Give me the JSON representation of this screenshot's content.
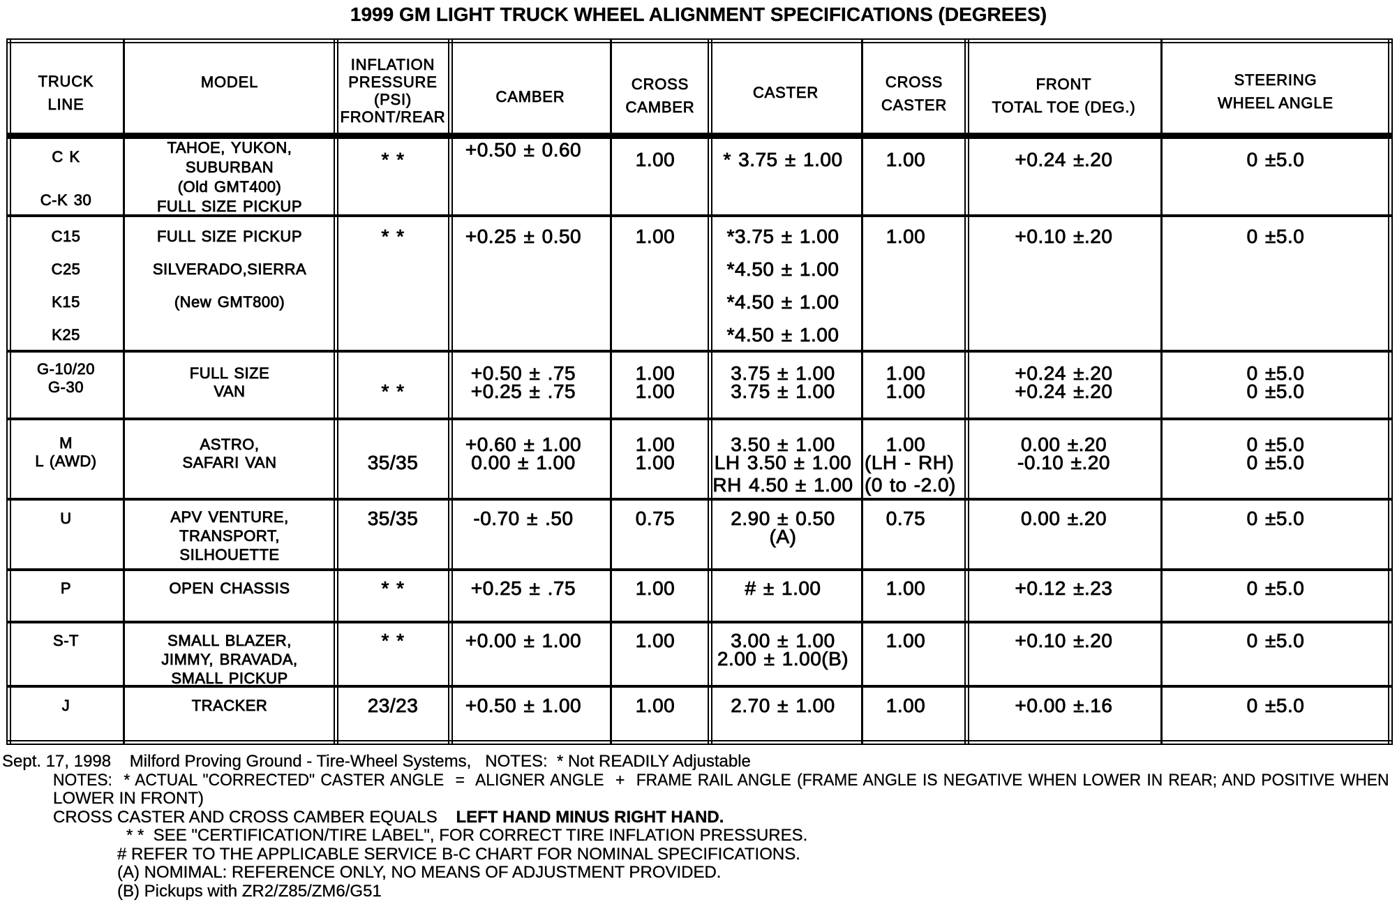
{
  "title": "1999 GM LIGHT TRUCK WHEEL ALIGNMENT SPECIFICATIONS (DEGREES)",
  "table": {
    "headers": [
      {
        "id": "truck-line",
        "lines": [
          "TRUCK",
          "LINE"
        ]
      },
      {
        "id": "model",
        "lines": [
          "MODEL"
        ]
      },
      {
        "id": "inflation-pressure",
        "lines": [
          "INFLATION",
          "PRESSURE",
          "(PSI)",
          "FRONT/REAR"
        ]
      },
      {
        "id": "camber",
        "lines": [
          "CAMBER"
        ]
      },
      {
        "id": "cross-camber",
        "lines": [
          "CROSS",
          "CAMBER"
        ]
      },
      {
        "id": "caster",
        "lines": [
          "CASTER"
        ]
      },
      {
        "id": "cross-caster",
        "lines": [
          "CROSS",
          "CASTER"
        ]
      },
      {
        "id": "front-total-toe",
        "lines": [
          "FRONT",
          "TOTAL TOE (DEG.)"
        ]
      },
      {
        "id": "steering-wheel-angle",
        "lines": [
          "STEERING",
          "WHEEL ANGLE"
        ]
      }
    ],
    "rows": [
      {
        "cells": [
          [
            "C K",
            "",
            "C-K 30"
          ],
          [
            "TAHOE, YUKON,",
            "SUBURBAN",
            "(Old GMT400)",
            "FULL SIZE PICKUP"
          ],
          [
            "* *"
          ],
          [
            "+0.50 ± 0.60"
          ],
          [
            "1.00"
          ],
          [
            "* 3.75 ± 1.00"
          ],
          [
            "1.00"
          ],
          [
            "+0.24 ±.20"
          ],
          [
            "0 ±5.0"
          ]
        ]
      },
      {
        "cells": [
          [
            "C15",
            "C25",
            "K15",
            "K25"
          ],
          [
            "FULL SIZE PICKUP",
            "SILVERADO,SIERRA",
            "(New GMT800)"
          ],
          [
            "* *"
          ],
          [
            "+0.25 ± 0.50"
          ],
          [
            "1.00"
          ],
          [
            "*3.75 ± 1.00",
            "*4.50 ± 1.00",
            "*4.50 ± 1.00",
            "*4.50 ± 1.00"
          ],
          [
            "1.00"
          ],
          [
            "+0.10 ±.20"
          ],
          [
            "0 ±5.0"
          ]
        ]
      },
      {
        "cells": [
          [
            "G-10/20",
            "G-30"
          ],
          [
            "FULL SIZE",
            "VAN"
          ],
          [
            "",
            "* *"
          ],
          [
            "+0.50 ± .75",
            "+0.25 ± .75"
          ],
          [
            "1.00",
            "1.00"
          ],
          [
            "3.75 ± 1.00",
            "3.75 ± 1.00"
          ],
          [
            "1.00",
            "1.00"
          ],
          [
            "+0.24 ±.20",
            "+0.24 ±.20"
          ],
          [
            "0 ±5.0",
            "0 ±5.0"
          ]
        ]
      },
      {
        "cells": [
          [
            "M",
            "L (AWD)"
          ],
          [
            "ASTRO,",
            "SAFARI VAN"
          ],
          [
            "",
            "35/35"
          ],
          [
            "+0.60 ± 1.00",
            "0.00 ± 1.00"
          ],
          [
            "1.00",
            "1.00"
          ],
          [
            "3.50 ± 1.00",
            "LH 3.50 ± 1.00",
            "RH 4.50 ± 1.00"
          ],
          [
            "1.00",
            "(LH - RH)",
            "(0 to -2.0)"
          ],
          [
            "0.00 ±.20",
            "-0.10 ±.20"
          ],
          [
            "0 ±5.0",
            "0 ±5.0"
          ]
        ]
      },
      {
        "cells": [
          [
            "U"
          ],
          [
            "APV VENTURE,",
            "TRANSPORT,",
            "SILHOUETTE"
          ],
          [
            "35/35"
          ],
          [
            "-0.70 ± .50"
          ],
          [
            "0.75"
          ],
          [
            "2.90 ± 0.50",
            "(A)"
          ],
          [
            "0.75"
          ],
          [
            "0.00 ±.20"
          ],
          [
            "0 ±5.0"
          ]
        ]
      },
      {
        "cells": [
          [
            "P"
          ],
          [
            "OPEN CHASSIS"
          ],
          [
            "* *"
          ],
          [
            "+0.25 ± .75"
          ],
          [
            "1.00"
          ],
          [
            "# ± 1.00"
          ],
          [
            "1.00"
          ],
          [
            "+0.12 ±.23"
          ],
          [
            "0 ±5.0"
          ]
        ]
      },
      {
        "cells": [
          [
            "S-T"
          ],
          [
            "SMALL BLAZER,",
            "JIMMY, BRAVADA,",
            "SMALL PICKUP"
          ],
          [
            "* *"
          ],
          [
            "+0.00 ± 1.00"
          ],
          [
            "1.00"
          ],
          [
            "3.00 ± 1.00",
            "2.00 ± 1.00(B)"
          ],
          [
            "1.00"
          ],
          [
            "+0.10 ±.20"
          ],
          [
            "0 ±5.0"
          ]
        ]
      },
      {
        "cells": [
          [
            "J"
          ],
          [
            "TRACKER"
          ],
          [
            "23/23"
          ],
          [
            "+0.50 ± 1.00"
          ],
          [
            "1.00"
          ],
          [
            "2.70 ± 1.00"
          ],
          [
            "1.00"
          ],
          [
            "+0.00 ±.16"
          ],
          [
            "0 ±5.0"
          ]
        ]
      }
    ]
  },
  "notes": [
    {
      "indent": 0,
      "parts": [
        {
          "t": "Sept. 17, 1998    Milford Proving Ground - Tire-Wheel Systems,   NOTES:  * Not READILY Adjustable"
        }
      ]
    },
    {
      "indent": 1,
      "justify": true,
      "parts": [
        {
          "t": "NOTES:  * ACTUAL \"CORRECTED\" CASTER ANGLE  =  ALIGNER ANGLE  +  FRAME RAIL ANGLE (FRAME ANGLE IS NEGATIVE WHEN LOWER IN REAR; AND POSITIVE WHEN"
        }
      ]
    },
    {
      "indent": 1,
      "parts": [
        {
          "t": "LOWER IN FRONT)"
        }
      ]
    },
    {
      "indent": 1,
      "parts": [
        {
          "t": "CROSS CASTER AND CROSS CAMBER EQUALS    "
        },
        {
          "t": "LEFT HAND MINUS RIGHT HAND.",
          "b": true
        }
      ]
    },
    {
      "indent": 3,
      "parts": [
        {
          "t": "* *  SEE \"CERTIFICATION/TIRE LABEL\", FOR CORRECT TIRE INFLATION PRESSURES."
        }
      ]
    },
    {
      "indent": 2,
      "parts": [
        {
          "t": "# REFER TO THE APPLICABLE SERVICE B-C CHART FOR NOMINAL SPECIFICATIONS."
        }
      ]
    },
    {
      "indent": 2,
      "parts": [
        {
          "t": "(A) NOMIMAL: REFERENCE ONLY, NO MEANS OF ADJUSTMENT PROVIDED."
        }
      ]
    },
    {
      "indent": 2,
      "parts": [
        {
          "t": "(B) Pickups with ZR2/Z85/ZM6/G51"
        }
      ]
    }
  ]
}
